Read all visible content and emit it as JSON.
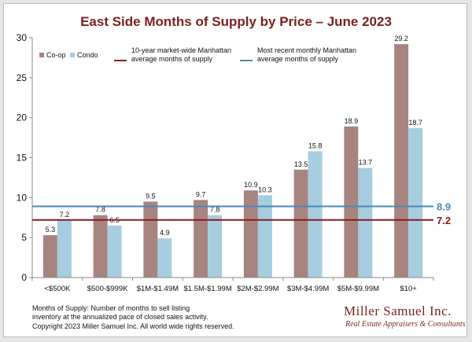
{
  "chart_data": {
    "type": "bar",
    "title": "East Side Months of Supply by Price – June 2023",
    "categories": [
      "<$500K",
      "$500-$999K",
      "$1M-$1.49M",
      "$1.5M-$1.99M",
      "$2M-$2.99M",
      "$3M-$4.99M",
      "$5M-$9.99M",
      "$10+"
    ],
    "series": [
      {
        "name": "Co-op",
        "color": "#a78480",
        "values": [
          5.3,
          7.8,
          9.5,
          9.7,
          10.9,
          13.5,
          18.9,
          29.2
        ],
        "labels": [
          "5.3",
          "7.8",
          "9.5",
          "9.7",
          "10.9",
          "13.5",
          "18.9",
          "29.2"
        ]
      },
      {
        "name": "Condo",
        "color": "#a6cde0",
        "values": [
          7.2,
          6.5,
          4.9,
          7.8,
          10.3,
          15.8,
          13.7,
          18.7
        ],
        "labels": [
          "7.2",
          "6.5",
          "4.9",
          "7.8",
          "10.3",
          "15.8",
          "13.7",
          "18.7"
        ]
      }
    ],
    "ylim": [
      0,
      30
    ],
    "yticks": [
      0,
      5,
      10,
      15,
      20,
      25,
      30
    ],
    "reference_lines": [
      {
        "name": "10-year  market-wide Manhattan\naverage months of supply",
        "value": 7.2,
        "label": "7.2",
        "color": "#8b1a1a"
      },
      {
        "name": "Most recent monthly Manhattan\naverage months of supply",
        "value": 8.9,
        "label": "8.9",
        "color": "#4b87b4"
      }
    ],
    "grid": false,
    "legend": "top-left"
  },
  "footnote": {
    "line1": "Months of Supply: Number of months to sell listing",
    "line2": "inventory at the annualized pace of closed sales activity.",
    "line3": "Copyright 2023 Miller Samuel Inc.  All world wide rights reserved."
  },
  "logo": {
    "name": "Miller Samuel Inc.",
    "tagline": "Real Estate Appraisers & Consultants"
  }
}
